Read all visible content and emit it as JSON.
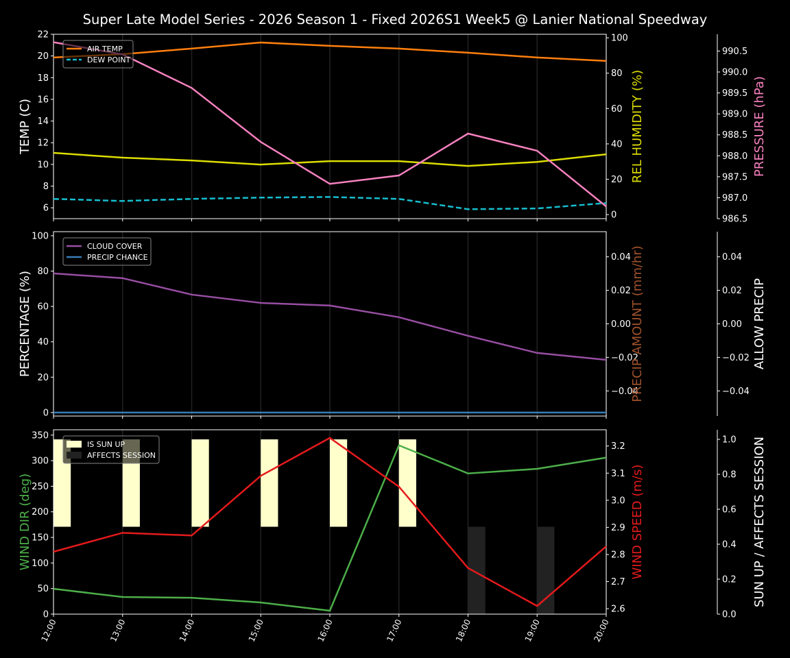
{
  "title": "Super Late Model Series - 2026 Season 1 - Fixed 2026S1 Week5 @ Lanier National Speedway",
  "colors": {
    "background": "#000000",
    "air_temp": "#ff7f0e",
    "dew_point": "#17becf",
    "humidity": "#dddd00",
    "pressure": "#f781bf",
    "cloud": "#984ea3",
    "precip_chance": "#377eb8",
    "precip_amount": "#a0522d",
    "wind_dir": "#4daf4a",
    "wind_speed": "#e41a1c",
    "sun_up": "#ffffcc",
    "affects_session": "#222222"
  },
  "chart_data": [
    {
      "type": "line",
      "x": [
        "12:00",
        "13:00",
        "14:00",
        "15:00",
        "16:00",
        "17:00",
        "18:00",
        "19:00",
        "20:00"
      ],
      "grid": "vertical",
      "legend": "top-left",
      "axes": [
        {
          "side": "left",
          "label": "TEMP (C)",
          "range": [
            5,
            22
          ],
          "ticks": [
            6,
            8,
            10,
            12,
            14,
            16,
            18,
            20,
            22
          ]
        },
        {
          "side": "right",
          "label": "REL HUMIDITY (%)",
          "range": [
            -2.3,
            102
          ],
          "ticks": [
            0,
            20,
            40,
            60,
            80,
            100
          ]
        },
        {
          "side": "right-outer",
          "label": "PRESSURE (hPa)",
          "range": [
            986.5,
            990.9
          ],
          "ticks": [
            "986.5",
            "987.0",
            "987.5",
            "988.0",
            "988.5",
            "989.0",
            "989.5",
            "990.0",
            "990.5"
          ]
        }
      ],
      "series": [
        {
          "name": "AIR TEMP",
          "axis": 0,
          "color": "#ff7f0e",
          "dash": false,
          "legend": true,
          "values": [
            19.86,
            20.17,
            20.68,
            21.24,
            20.93,
            20.68,
            20.3,
            19.86,
            19.54
          ]
        },
        {
          "name": "DEW POINT",
          "axis": 0,
          "color": "#17becf",
          "dash": true,
          "legend": true,
          "values": [
            6.82,
            6.63,
            6.82,
            6.94,
            7.0,
            6.82,
            5.87,
            5.94,
            6.44
          ]
        },
        {
          "axis": 1,
          "color": "#dddd00",
          "dash": false,
          "legend": false,
          "values": [
            34.9,
            32.2,
            30.6,
            28.3,
            30.2,
            30.2,
            27.5,
            29.8,
            34.1
          ]
        },
        {
          "axis": 2,
          "color": "#f781bf",
          "dash": false,
          "legend": false,
          "values": [
            990.71,
            990.42,
            989.62,
            988.33,
            987.33,
            987.53,
            988.53,
            988.12,
            986.79
          ]
        }
      ]
    },
    {
      "type": "line",
      "x": [
        "12:00",
        "13:00",
        "14:00",
        "15:00",
        "16:00",
        "17:00",
        "18:00",
        "19:00",
        "20:00"
      ],
      "grid": "vertical",
      "legend": "top-left",
      "axes": [
        {
          "side": "left",
          "label": "PERCENTAGE (%)",
          "range": [
            -2,
            102.3
          ],
          "ticks": [
            0,
            20,
            40,
            60,
            80,
            100
          ]
        },
        {
          "side": "right",
          "label": "PRECIP AMOUNT (mm/hr)",
          "range": [
            -0.055,
            0.055
          ],
          "ticks": [
            "−0.04",
            "−0.02",
            "0.00",
            "0.02",
            "0.04"
          ]
        },
        {
          "side": "right-outer",
          "label": "ALLOW PRECIP",
          "range": [
            -0.055,
            0.055
          ],
          "ticks": [
            "−0.04",
            "−0.02",
            "0.00",
            "0.02",
            "0.04"
          ]
        }
      ],
      "series": [
        {
          "name": "CLOUD COVER",
          "axis": 0,
          "color": "#984ea3",
          "dash": false,
          "legend": true,
          "values": [
            78.7,
            76,
            66.7,
            62,
            60.5,
            53.9,
            43.4,
            33.7,
            29.8
          ]
        },
        {
          "name": "PRECIP CHANCE",
          "axis": 0,
          "color": "#377eb8",
          "dash": false,
          "legend": true,
          "values": [
            0,
            0,
            0,
            0,
            0,
            0,
            0,
            0,
            0
          ]
        }
      ]
    },
    {
      "type": "line",
      "x": [
        "12:00",
        "13:00",
        "14:00",
        "15:00",
        "16:00",
        "17:00",
        "18:00",
        "19:00",
        "20:00"
      ],
      "grid": "vertical",
      "legend": "top-left",
      "axes": [
        {
          "side": "left",
          "label": "WIND DIR (deg)",
          "range": [
            0,
            360.4
          ],
          "ticks": [
            0,
            50,
            100,
            150,
            200,
            250,
            300,
            350
          ]
        },
        {
          "side": "right",
          "label": "WIND SPEED (m/s)",
          "range": [
            2.58,
            3.26
          ],
          "ticks": [
            "2.6",
            "2.7",
            "2.8",
            "2.9",
            "3.0",
            "3.1",
            "3.2"
          ]
        },
        {
          "side": "right-outer",
          "label": "SUN UP / AFFECTS SESSION",
          "range": [
            0,
            1.055
          ],
          "ticks": [
            "0.0",
            "0.2",
            "0.4",
            "0.6",
            "0.8",
            "1.0"
          ]
        }
      ],
      "bars": [
        {
          "name": "IS SUN UP",
          "color": "#ffffcc",
          "x": [
            "12:00",
            "13:00",
            "14:00",
            "15:00",
            "16:00",
            "17:00"
          ],
          "from": 0.5,
          "to": 1.0
        },
        {
          "name": "AFFECTS SESSION",
          "color": "#222222",
          "x": [
            "18:00",
            "19:00"
          ],
          "from": 0,
          "to": 0.5
        }
      ],
      "series": [
        {
          "axis": 0,
          "color": "#4daf4a",
          "dash": false,
          "legend": false,
          "values": [
            49.6,
            33.5,
            32,
            22.8,
            6.7,
            330,
            275,
            284,
            306
          ]
        },
        {
          "axis": 1,
          "color": "#e41a1c",
          "dash": false,
          "legend": false,
          "values": [
            2.81,
            2.88,
            2.87,
            3.09,
            3.23,
            3.05,
            2.75,
            2.61,
            2.83
          ]
        }
      ]
    }
  ]
}
